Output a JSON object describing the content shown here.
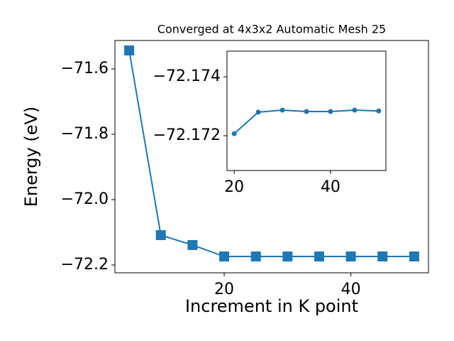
{
  "chart_data": [
    {
      "type": "line",
      "title": "Converged at 4x3x2 Automatic Mesh 25",
      "x_label": "Increment in K point",
      "y_label": "Energy (eV)",
      "x": [
        5,
        10,
        15,
        20,
        25,
        30,
        35,
        40,
        45,
        50
      ],
      "series": [
        {
          "color": "#1f77b4",
          "marker": "square",
          "values": [
            -71.5435,
            -72.1087,
            -72.139,
            -72.174,
            -72.174,
            -72.174,
            -72.174,
            -72.174,
            -72.174,
            -72.174
          ]
        }
      ],
      "xlim": [
        2.75,
        52.25
      ],
      "ylim": [
        -72.224,
        -71.513
      ],
      "xticks": [
        20,
        40
      ],
      "yticks": [
        {
          "value": -72.2,
          "label": "−72.2"
        },
        {
          "value": -72.0,
          "label": "−72.0"
        },
        {
          "value": -71.8,
          "label": "−71.8"
        },
        {
          "value": -71.6,
          "label": "−71.6"
        }
      ]
    },
    {
      "type": "line",
      "x": [
        20,
        25,
        30,
        35,
        40,
        45,
        50
      ],
      "series": [
        {
          "color": "#1f77b4",
          "marker": "circle",
          "values": [
            -72.17207,
            -72.1728,
            -72.17287,
            -72.17282,
            -72.17282,
            -72.17287,
            -72.17284
          ]
        }
      ],
      "xlim": [
        18.5,
        51.5
      ],
      "ylim": [
        -72.17082,
        -72.17487
      ],
      "xticks": [
        20,
        40
      ],
      "yticks": [
        {
          "value": -72.172,
          "label": "−72.172"
        },
        {
          "value": -72.174,
          "label": "−72.174"
        }
      ]
    }
  ]
}
